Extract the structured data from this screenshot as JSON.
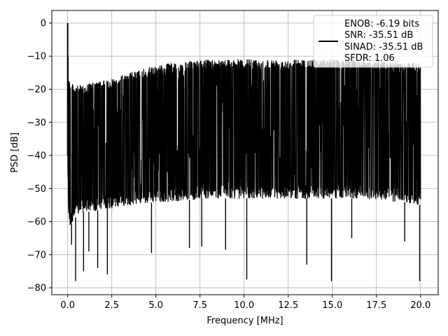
{
  "chart_data": {
    "type": "line",
    "title": "",
    "xlabel": "Frequency [MHz]",
    "ylabel": "PSD [dB]",
    "xlim": [
      -0.9,
      21.0
    ],
    "ylim": [
      -82.1,
      3.8
    ],
    "xticks": [
      0.0,
      2.5,
      5.0,
      7.5,
      10.0,
      12.5,
      15.0,
      17.5,
      20.0
    ],
    "xtick_labels": [
      "0.0",
      "2.5",
      "5.0",
      "7.5",
      "10.0",
      "12.5",
      "15.0",
      "17.5",
      "20.0"
    ],
    "yticks": [
      0,
      -10,
      -20,
      -30,
      -40,
      -50,
      -60,
      -70,
      -80
    ],
    "ytick_labels": [
      "0",
      "−10",
      "−20",
      "−30",
      "−40",
      "−50",
      "−60",
      "−70",
      "−80"
    ],
    "grid": true,
    "legend_placement": "top-right",
    "legend": {
      "lines": [
        "ENOB: -6.19 bits",
        "SNR: -35.51 dB",
        "SINAD: -35.51 dB",
        "SFDR: 1.06"
      ]
    },
    "line_color": "#000000",
    "series": [
      {
        "x": [
          0.0,
          0.02,
          0.04,
          0.08,
          0.15,
          0.25,
          0.4,
          0.6,
          1.0,
          1.5,
          2.0,
          2.5,
          3.0,
          3.5,
          4.0,
          4.5,
          5.0,
          5.5,
          6.0,
          6.5,
          7.0,
          7.5,
          8.0,
          8.5,
          9.0,
          9.5,
          10.0,
          10.5,
          11.0,
          11.5,
          12.0,
          12.5,
          13.0,
          13.5,
          14.0,
          14.5,
          15.0,
          15.5,
          16.0,
          16.5,
          17.0,
          17.5,
          18.0,
          18.5,
          19.0,
          19.5,
          20.0
        ],
        "upper_envelope": [
          0.0,
          -5,
          -12,
          -16,
          -19,
          -18,
          -19,
          -19,
          -18.5,
          -18,
          -17.5,
          -17,
          -16,
          -15,
          -14.5,
          -13.5,
          -13,
          -12.5,
          -12,
          -12,
          -11.5,
          -11.5,
          -11,
          -11,
          -11,
          -11,
          -11,
          -11,
          -11,
          -11,
          -11,
          -11,
          -11,
          -11,
          -11,
          -11,
          -11,
          -11,
          -11,
          -11,
          -11.5,
          -11.5,
          -11.5,
          -12,
          -12,
          -12,
          -12.5
        ],
        "lower_band": [
          -45,
          -50,
          -56,
          -60,
          -62,
          -60,
          -59,
          -58,
          -57,
          -57,
          -56,
          -56,
          -55.5,
          -55,
          -54.5,
          -54.5,
          -54,
          -54,
          -54,
          -53.5,
          -53.5,
          -53,
          -53,
          -53,
          -53,
          -53,
          -53,
          -53,
          -53,
          -53,
          -53,
          -53,
          -53,
          -53,
          -53,
          -53,
          -53,
          -53,
          -53,
          -53,
          -53,
          -53.5,
          -53.5,
          -54,
          -54,
          -54.5,
          -55
        ],
        "dips": [
          {
            "x": 0.22,
            "y": -67
          },
          {
            "x": 0.45,
            "y": -78
          },
          {
            "x": 0.9,
            "y": -75
          },
          {
            "x": 1.2,
            "y": -69
          },
          {
            "x": 1.7,
            "y": -74
          },
          {
            "x": 2.25,
            "y": -76
          },
          {
            "x": 4.75,
            "y": -69.5
          },
          {
            "x": 6.9,
            "y": -68
          },
          {
            "x": 7.6,
            "y": -67.5
          },
          {
            "x": 8.95,
            "y": -68.5
          },
          {
            "x": 10.15,
            "y": -77.5
          },
          {
            "x": 13.55,
            "y": -73
          },
          {
            "x": 14.95,
            "y": -78
          },
          {
            "x": 16.1,
            "y": -65
          },
          {
            "x": 19.1,
            "y": -66
          },
          {
            "x": 19.95,
            "y": -78
          }
        ]
      }
    ]
  }
}
